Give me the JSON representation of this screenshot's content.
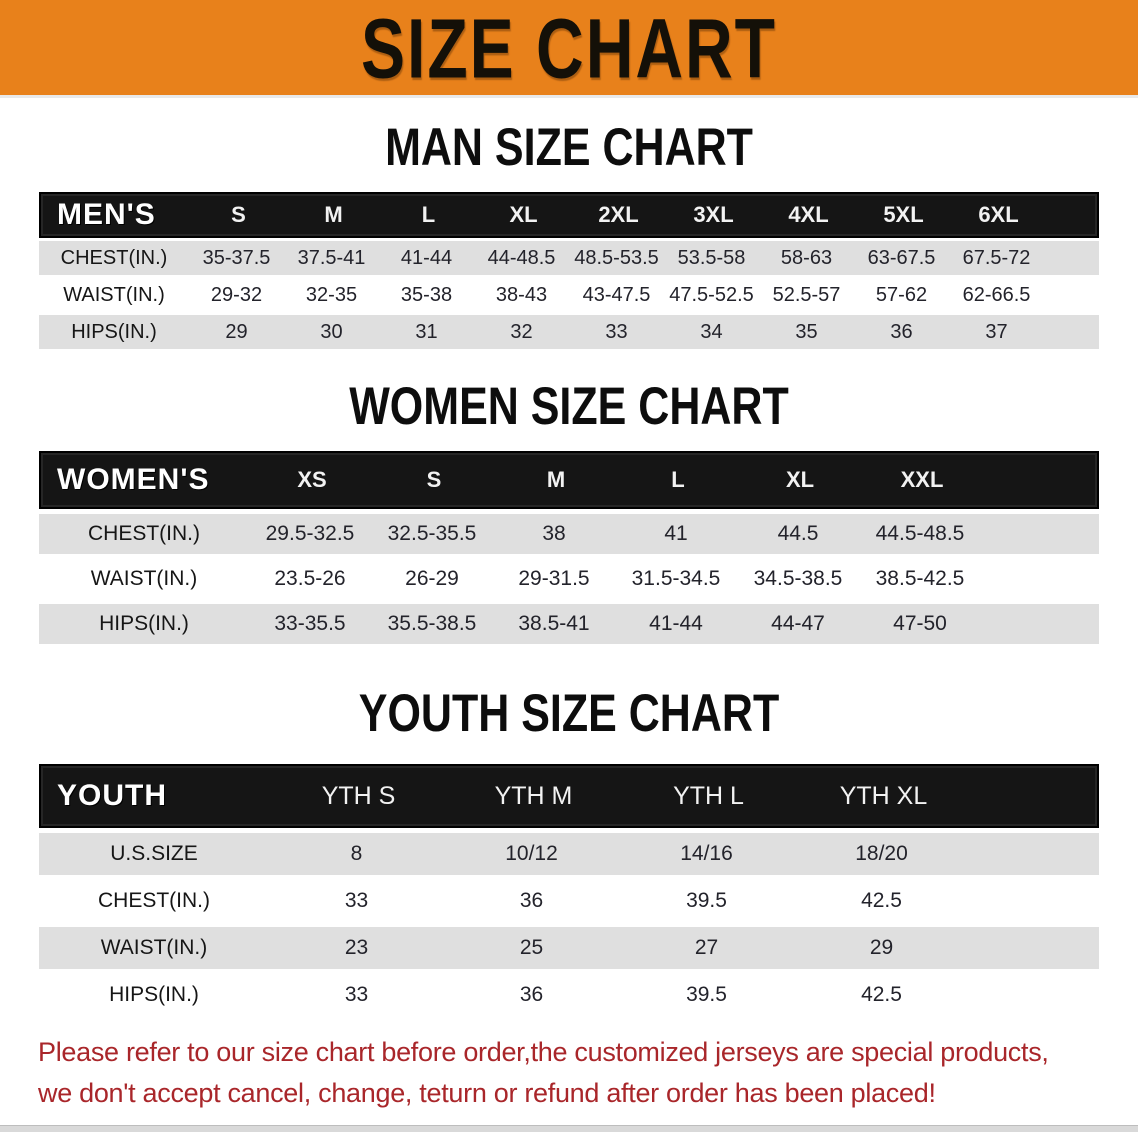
{
  "banner": {
    "title": "SIZE CHART"
  },
  "sections": [
    {
      "id": "men",
      "heading": "MAN SIZE CHART",
      "table": {
        "header_label": "MEN'S",
        "columns": [
          "S",
          "M",
          "L",
          "XL",
          "2XL",
          "3XL",
          "4XL",
          "5XL",
          "6XL"
        ],
        "rows": [
          {
            "label": "CHEST(IN.)",
            "values": [
              "35-37.5",
              "37.5-41",
              "41-44",
              "44-48.5",
              "48.5-53.5",
              "53.5-58",
              "58-63",
              "63-67.5",
              "67.5-72"
            ]
          },
          {
            "label": "WAIST(IN.)",
            "values": [
              "29-32",
              "32-35",
              "35-38",
              "38-43",
              "43-47.5",
              "47.5-52.5",
              "52.5-57",
              "57-62",
              "62-66.5"
            ]
          },
          {
            "label": "HIPS(IN.)",
            "values": [
              "29",
              "30",
              "31",
              "32",
              "33",
              "34",
              "35",
              "36",
              "37"
            ]
          }
        ]
      }
    },
    {
      "id": "women",
      "heading": "WOMEN SIZE CHART",
      "table": {
        "header_label": "WOMEN'S",
        "columns": [
          "XS",
          "S",
          "M",
          "L",
          "XL",
          "XXL"
        ],
        "rows": [
          {
            "label": "CHEST(IN.)",
            "values": [
              "29.5-32.5",
              "32.5-35.5",
              "38",
              "41",
              "44.5",
              "44.5-48.5"
            ]
          },
          {
            "label": "WAIST(IN.)",
            "values": [
              "23.5-26",
              "26-29",
              "29-31.5",
              "31.5-34.5",
              "34.5-38.5",
              "38.5-42.5"
            ]
          },
          {
            "label": "HIPS(IN.)",
            "values": [
              "33-35.5",
              "35.5-38.5",
              "38.5-41",
              "41-44",
              "44-47",
              "47-50"
            ]
          }
        ]
      }
    },
    {
      "id": "youth",
      "heading": "YOUTH SIZE CHART",
      "table": {
        "header_label": "YOUTH",
        "columns": [
          "YTH S",
          "YTH M",
          "YTH L",
          "YTH XL"
        ],
        "rows": [
          {
            "label": "U.S.SIZE",
            "values": [
              "8",
              "10/12",
              "14/16",
              "18/20"
            ]
          },
          {
            "label": "CHEST(IN.)",
            "values": [
              "33",
              "36",
              "39.5",
              "42.5"
            ]
          },
          {
            "label": "WAIST(IN.)",
            "values": [
              "23",
              "25",
              "27",
              "29"
            ]
          },
          {
            "label": "HIPS(IN.)",
            "values": [
              "33",
              "36",
              "39.5",
              "42.5"
            ]
          }
        ]
      }
    }
  ],
  "footer": {
    "line1": "Please refer to our size chart before order,the customized jerseys are special products,",
    "line2": "we don't accept cancel, change, teturn or refund after order has been placed!"
  },
  "colors": {
    "banner_bg": "#E8811B",
    "table_header_bg": "#151515",
    "row_stripe": "#DFDFDF",
    "notice_text": "#A9262A"
  }
}
